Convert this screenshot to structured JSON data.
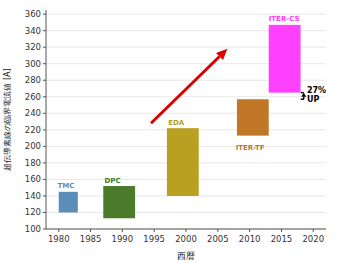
{
  "chart_data": {
    "type": "bar",
    "xlabel": "西暦",
    "ylabel": "超伝導素線の臨界電流値 [A]",
    "xlim": [
      1978,
      2022
    ],
    "ylim": [
      100,
      365
    ],
    "xticks": [
      1980,
      1985,
      1990,
      1995,
      2000,
      2005,
      2010,
      2015,
      2020
    ],
    "yticks": [
      100,
      120,
      140,
      160,
      180,
      200,
      220,
      240,
      260,
      280,
      300,
      320,
      340,
      360
    ],
    "grid": true,
    "bars": [
      {
        "name": "TMC",
        "x_left": 1980,
        "x_right": 1983,
        "bottom": 120,
        "top": 145,
        "color": "#5B8DB8",
        "label_x": 1979.8,
        "label_y": 148
      },
      {
        "name": "DPC",
        "x_left": 1987,
        "x_right": 1992,
        "bottom": 113,
        "top": 152,
        "color": "#4A7A2A",
        "label_x": 1987.2,
        "label_y": 155
      },
      {
        "name": "EDA",
        "x_left": 1997,
        "x_right": 2002,
        "bottom": 140,
        "top": 222,
        "color": "#B8A020",
        "label_x": 1997.2,
        "label_y": 225
      },
      {
        "name": "ITER-TF",
        "x_left": 2008,
        "x_right": 2013,
        "bottom": 213,
        "top": 257,
        "color": "#C07828",
        "label_x": 2007.8,
        "label_y": 194
      },
      {
        "name": "ITER-CS",
        "x_left": 2013,
        "x_right": 2018,
        "bottom": 265,
        "top": 347,
        "color": "#FF40FF",
        "label_x": 2013.0,
        "label_y": 350
      }
    ],
    "arrow": {
      "start": [
        1994.5,
        228
      ],
      "end": [
        2006.5,
        318
      ],
      "color": "#DD0000"
    },
    "up_arrow": {
      "x": 2018.5,
      "bottom": 257,
      "top": 265,
      "text": "27%\nUP",
      "text_x": 2019.0,
      "text_y": 263
    }
  }
}
